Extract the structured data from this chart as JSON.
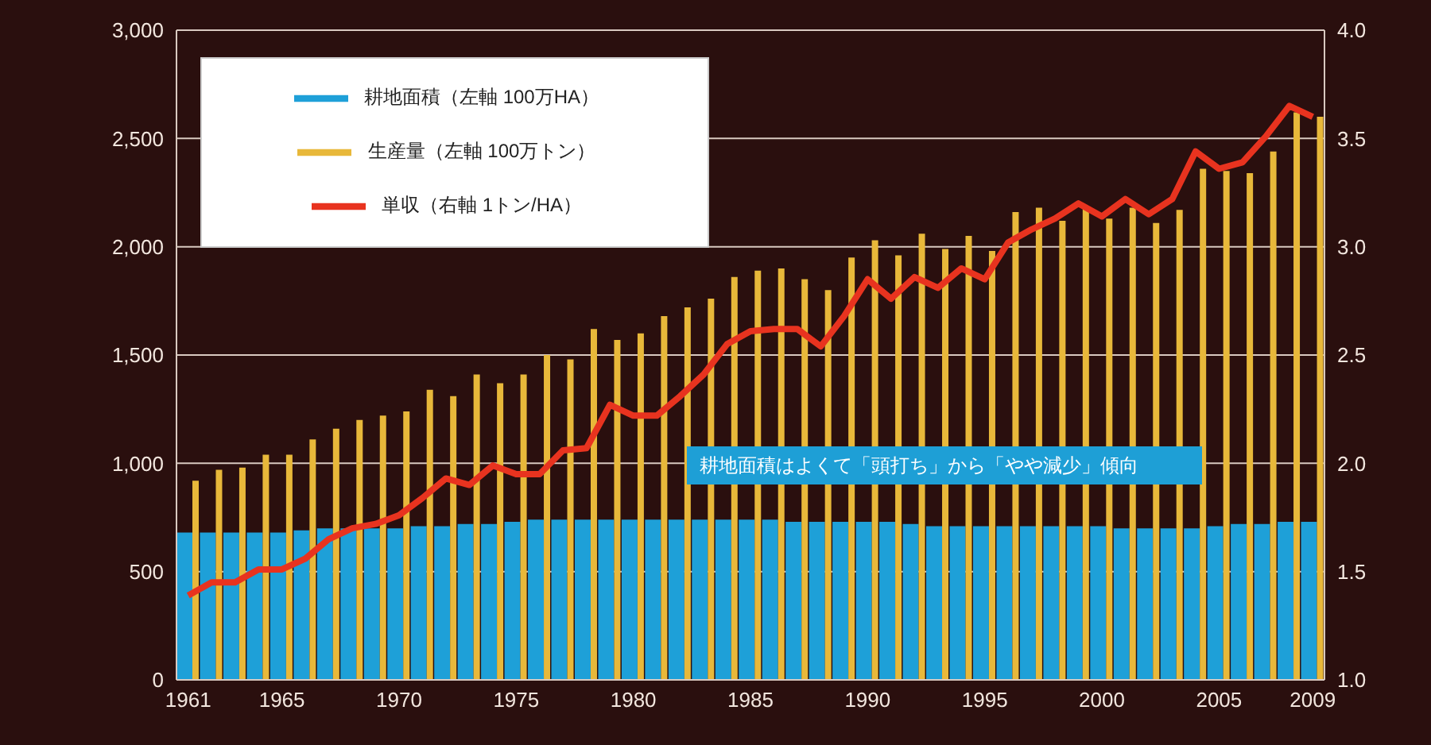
{
  "chart_data": {
    "type": "bar",
    "categories": [
      "1961",
      null,
      null,
      null,
      "1965",
      null,
      null,
      null,
      null,
      "1970",
      null,
      null,
      null,
      null,
      "1975",
      null,
      null,
      null,
      null,
      "1980",
      null,
      null,
      null,
      null,
      "1985",
      null,
      null,
      null,
      null,
      "1990",
      null,
      null,
      null,
      null,
      "1995",
      null,
      null,
      null,
      null,
      "2000",
      null,
      null,
      null,
      null,
      "2005",
      null,
      null,
      null,
      "2009"
    ],
    "series": [
      {
        "name": "耕地面積（左軸 100万HA）",
        "color": "#1ea0d8",
        "values": [
          680,
          680,
          680,
          680,
          680,
          690,
          700,
          700,
          700,
          700,
          710,
          710,
          720,
          720,
          730,
          740,
          740,
          740,
          740,
          740,
          740,
          740,
          740,
          740,
          740,
          740,
          730,
          730,
          730,
          730,
          730,
          720,
          710,
          710,
          710,
          710,
          710,
          710,
          710,
          710,
          700,
          700,
          700,
          700,
          710,
          720,
          720,
          730,
          730
        ]
      },
      {
        "name": "生産量（左軸 100万トン）",
        "color": "#e8b83a",
        "values": [
          920,
          970,
          980,
          1040,
          1040,
          1110,
          1160,
          1200,
          1220,
          1240,
          1340,
          1310,
          1410,
          1370,
          1410,
          1500,
          1480,
          1620,
          1570,
          1600,
          1680,
          1720,
          1760,
          1860,
          1890,
          1900,
          1850,
          1800,
          1950,
          2030,
          1960,
          2060,
          1990,
          2050,
          1980,
          2160,
          2180,
          2120,
          2180,
          2130,
          2180,
          2110,
          2170,
          2360,
          2350,
          2340,
          2440,
          2620,
          2600
        ]
      },
      {
        "name": "単収（右軸 1トン/HA）",
        "type": "line",
        "axis": "y2",
        "color": "#e8331f",
        "values": [
          1.39,
          1.45,
          1.45,
          1.51,
          1.51,
          1.56,
          1.65,
          1.7,
          1.72,
          1.76,
          1.84,
          1.93,
          1.9,
          1.99,
          1.95,
          1.95,
          2.06,
          2.07,
          2.27,
          2.22,
          2.22,
          2.31,
          2.41,
          2.55,
          2.61,
          2.62,
          2.62,
          2.54,
          2.68,
          2.85,
          2.76,
          2.86,
          2.81,
          2.9,
          2.85,
          3.02,
          3.08,
          3.13,
          3.2,
          3.14,
          3.22,
          3.15,
          3.22,
          3.44,
          3.36,
          3.39,
          3.51,
          3.65,
          3.6
        ]
      }
    ],
    "ylim": [
      0,
      3000
    ],
    "yticks": [
      0,
      500,
      {
        "value": 1000,
        "label": "1,000"
      },
      {
        "value": 1500,
        "label": "1,500"
      },
      {
        "value": 2000,
        "label": "2,000"
      },
      {
        "value": 2500,
        "label": "2,500"
      },
      {
        "value": 3000,
        "label": "3,000"
      }
    ],
    "y2lim": [
      1,
      4
    ],
    "y2ticks": [
      {
        "value": 1,
        "label": "1.0"
      },
      {
        "value": 1.5,
        "label": "1.5"
      },
      {
        "value": 2,
        "label": "2.0"
      },
      {
        "value": 2.5,
        "label": "2.5"
      },
      {
        "value": 3,
        "label": "3.0"
      },
      {
        "value": 3.5,
        "label": "3.5"
      },
      {
        "value": 4,
        "label": "4.0"
      }
    ],
    "grid": "y",
    "legend": "top left",
    "marker": "none",
    "line_style": "solid",
    "annotations": [
      "耕地面積はよくて「頭打ち」から「やや減少」傾向"
    ]
  }
}
